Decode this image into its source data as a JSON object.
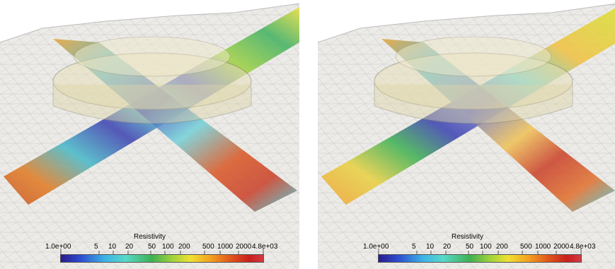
{
  "panels": [
    {
      "id": "left",
      "colorbar": {
        "title": "Resistivity",
        "min_label": "1.0e+00",
        "tick_labels": [
          "5",
          "10",
          "20",
          "50",
          "100",
          "200",
          "500",
          "1000",
          "2000",
          "4.8e+03"
        ]
      }
    },
    {
      "id": "right",
      "colorbar": {
        "title": "Resistivity",
        "min_label": "1.0e+00",
        "tick_labels": [
          "5",
          "10",
          "20",
          "50",
          "100",
          "200",
          "500",
          "1000",
          "2000",
          "4.8e+03"
        ]
      }
    }
  ],
  "colors": {
    "terrain": "#ecebe7",
    "mesh_lines": "#c9c9c9",
    "body_fill": "#e8e0b8",
    "body_edge": "#8f8a70"
  }
}
